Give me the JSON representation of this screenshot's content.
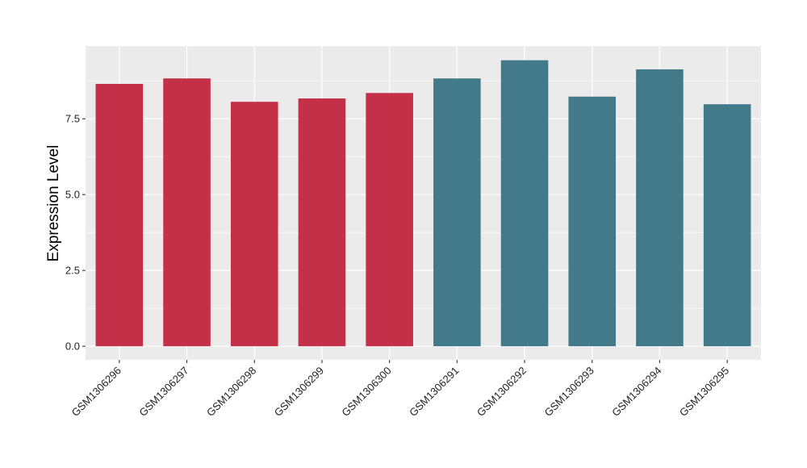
{
  "chart_data": {
    "type": "bar",
    "title": "",
    "xlabel": "",
    "ylabel": "Expression Level",
    "categories": [
      "GSM1306296",
      "GSM1306297",
      "GSM1306298",
      "GSM1306299",
      "GSM1306300",
      "GSM1306291",
      "GSM1306292",
      "GSM1306293",
      "GSM1306294",
      "GSM1306295"
    ],
    "values": [
      8.65,
      8.83,
      8.06,
      8.17,
      8.35,
      8.83,
      9.43,
      8.23,
      9.13,
      7.98
    ],
    "group_colors": [
      "#c33048",
      "#c33048",
      "#c33048",
      "#c33048",
      "#c33048",
      "#437a8a",
      "#437a8a",
      "#437a8a",
      "#437a8a",
      "#437a8a"
    ],
    "ylim": [
      -0.45,
      9.9
    ],
    "yticks": [
      0.0,
      2.5,
      5.0,
      7.5
    ],
    "ytick_labels": [
      "0.0",
      "2.5",
      "5.0",
      "7.5"
    ],
    "grid": true,
    "legend": "none",
    "panel_background": "#ebebeb",
    "grid_color": "#ffffff"
  }
}
